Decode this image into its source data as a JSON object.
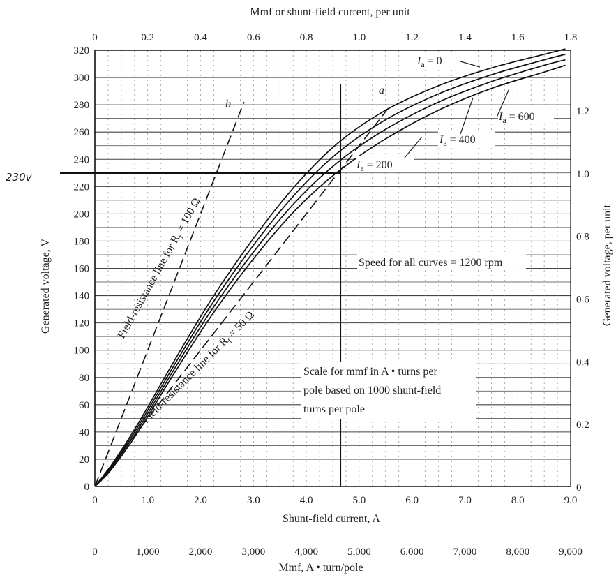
{
  "chart_data": {
    "type": "line",
    "title_top": "Mmf or shunt-field current, per unit",
    "xlabel": "Shunt-field current, A",
    "xlabel_mmf": "Mmf, A • turn/pole",
    "ylabel": "Generated voltage, V",
    "ylabel_right": "Generated voltage, per unit",
    "xlim": [
      0,
      9
    ],
    "ylim": [
      0,
      320
    ],
    "grid": true,
    "x_ticks": [
      "0",
      "1.0",
      "2.0",
      "3.0",
      "4.0",
      "5.0",
      "6.0",
      "7.0",
      "8.0",
      "9.0"
    ],
    "mmf_ticks": [
      "0",
      "1,000",
      "2,000",
      "3,000",
      "4,000",
      "5,000",
      "6,000",
      "7,000",
      "8,000",
      "9,000"
    ],
    "top_ticks": [
      "0",
      "0.2",
      "0.4",
      "0.6",
      "0.8",
      "1.0",
      "1.2",
      "1.4",
      "1.6",
      "1.8"
    ],
    "y_ticks": [
      "0",
      "20",
      "40",
      "60",
      "80",
      "100",
      "120",
      "140",
      "160",
      "180",
      "200",
      "220",
      "240",
      "260",
      "280",
      "300",
      "320"
    ],
    "right_ticks": [
      {
        "label": "0",
        "v": 0
      },
      {
        "label": "0.2",
        "v": 46
      },
      {
        "label": "0.4",
        "v": 92
      },
      {
        "label": "0.6",
        "v": 138
      },
      {
        "label": "0.8",
        "v": 184
      },
      {
        "label": "1.0",
        "v": 230
      },
      {
        "label": "1.2",
        "v": 276
      }
    ],
    "series": [
      {
        "name": "I_a = 0",
        "x": [
          0,
          0.3,
          0.8,
          1.5,
          2.2,
          3.0,
          3.8,
          4.6,
          5.5,
          6.5,
          7.5,
          8.5,
          8.9
        ],
        "y": [
          0,
          15,
          45,
          92,
          137,
          182,
          221,
          252,
          276,
          294,
          307,
          317,
          321
        ]
      },
      {
        "name": "I_a = 200",
        "x": [
          0,
          0.3,
          0.8,
          1.5,
          2.2,
          3.0,
          3.8,
          4.6,
          5.5,
          6.5,
          7.5,
          8.5,
          8.9
        ],
        "y": [
          0,
          14,
          43,
          89,
          133,
          177,
          215,
          245,
          269,
          288,
          302,
          313,
          317
        ]
      },
      {
        "name": "I_a = 400",
        "x": [
          0,
          0.3,
          0.8,
          1.5,
          2.2,
          3.0,
          3.8,
          4.6,
          5.5,
          6.5,
          7.5,
          8.5,
          8.9
        ],
        "y": [
          0,
          13,
          41,
          86,
          129,
          172,
          209,
          238,
          262,
          282,
          297,
          309,
          313
        ]
      },
      {
        "name": "I_a = 600",
        "x": [
          0,
          0.3,
          0.8,
          1.5,
          2.2,
          3.0,
          3.8,
          4.6,
          5.5,
          6.5,
          7.5,
          8.5,
          8.9
        ],
        "y": [
          0,
          12,
          39,
          83,
          125,
          167,
          203,
          231,
          255,
          276,
          292,
          304,
          309
        ]
      }
    ],
    "resistance_lines": [
      {
        "name": "b",
        "r_ohm": 100,
        "x": [
          0,
          2.82
        ],
        "y": [
          0,
          282
        ]
      },
      {
        "name": "a",
        "r_ohm": 50,
        "x": [
          0,
          5.6
        ],
        "y": [
          0,
          280
        ]
      }
    ],
    "labels": {
      "curve_b": "b",
      "curve_a": "a",
      "ia0_sym": "I",
      "ia0_sub": "a",
      "ia0_val": " = 0",
      "ia600_sym": "I",
      "ia600_sub": "a",
      "ia600_val": " = 600",
      "ia400_sym": "I",
      "ia400_sub": "a",
      "ia400_val": " = 400",
      "ia200_sym": "I",
      "ia200_sub": "a",
      "ia200_val": " = 200",
      "line100": "Field-resistance line for R",
      "line100_sub": "f",
      "line100_val": " = 100 Ω",
      "line50": "Field-resistance line for R",
      "line50_sub": "f",
      "line50_val": " = 50 Ω",
      "speed": "Speed for all curves = 1200 rpm",
      "scale_line1": "Scale for mmf in A • turns per",
      "scale_line2": "pole based on 1000 shunt-field",
      "scale_line3": "turns per pole",
      "handwritten": "230v"
    },
    "reference_lines": {
      "x_vertical": 4.65,
      "y_horizontal": 230
    }
  }
}
